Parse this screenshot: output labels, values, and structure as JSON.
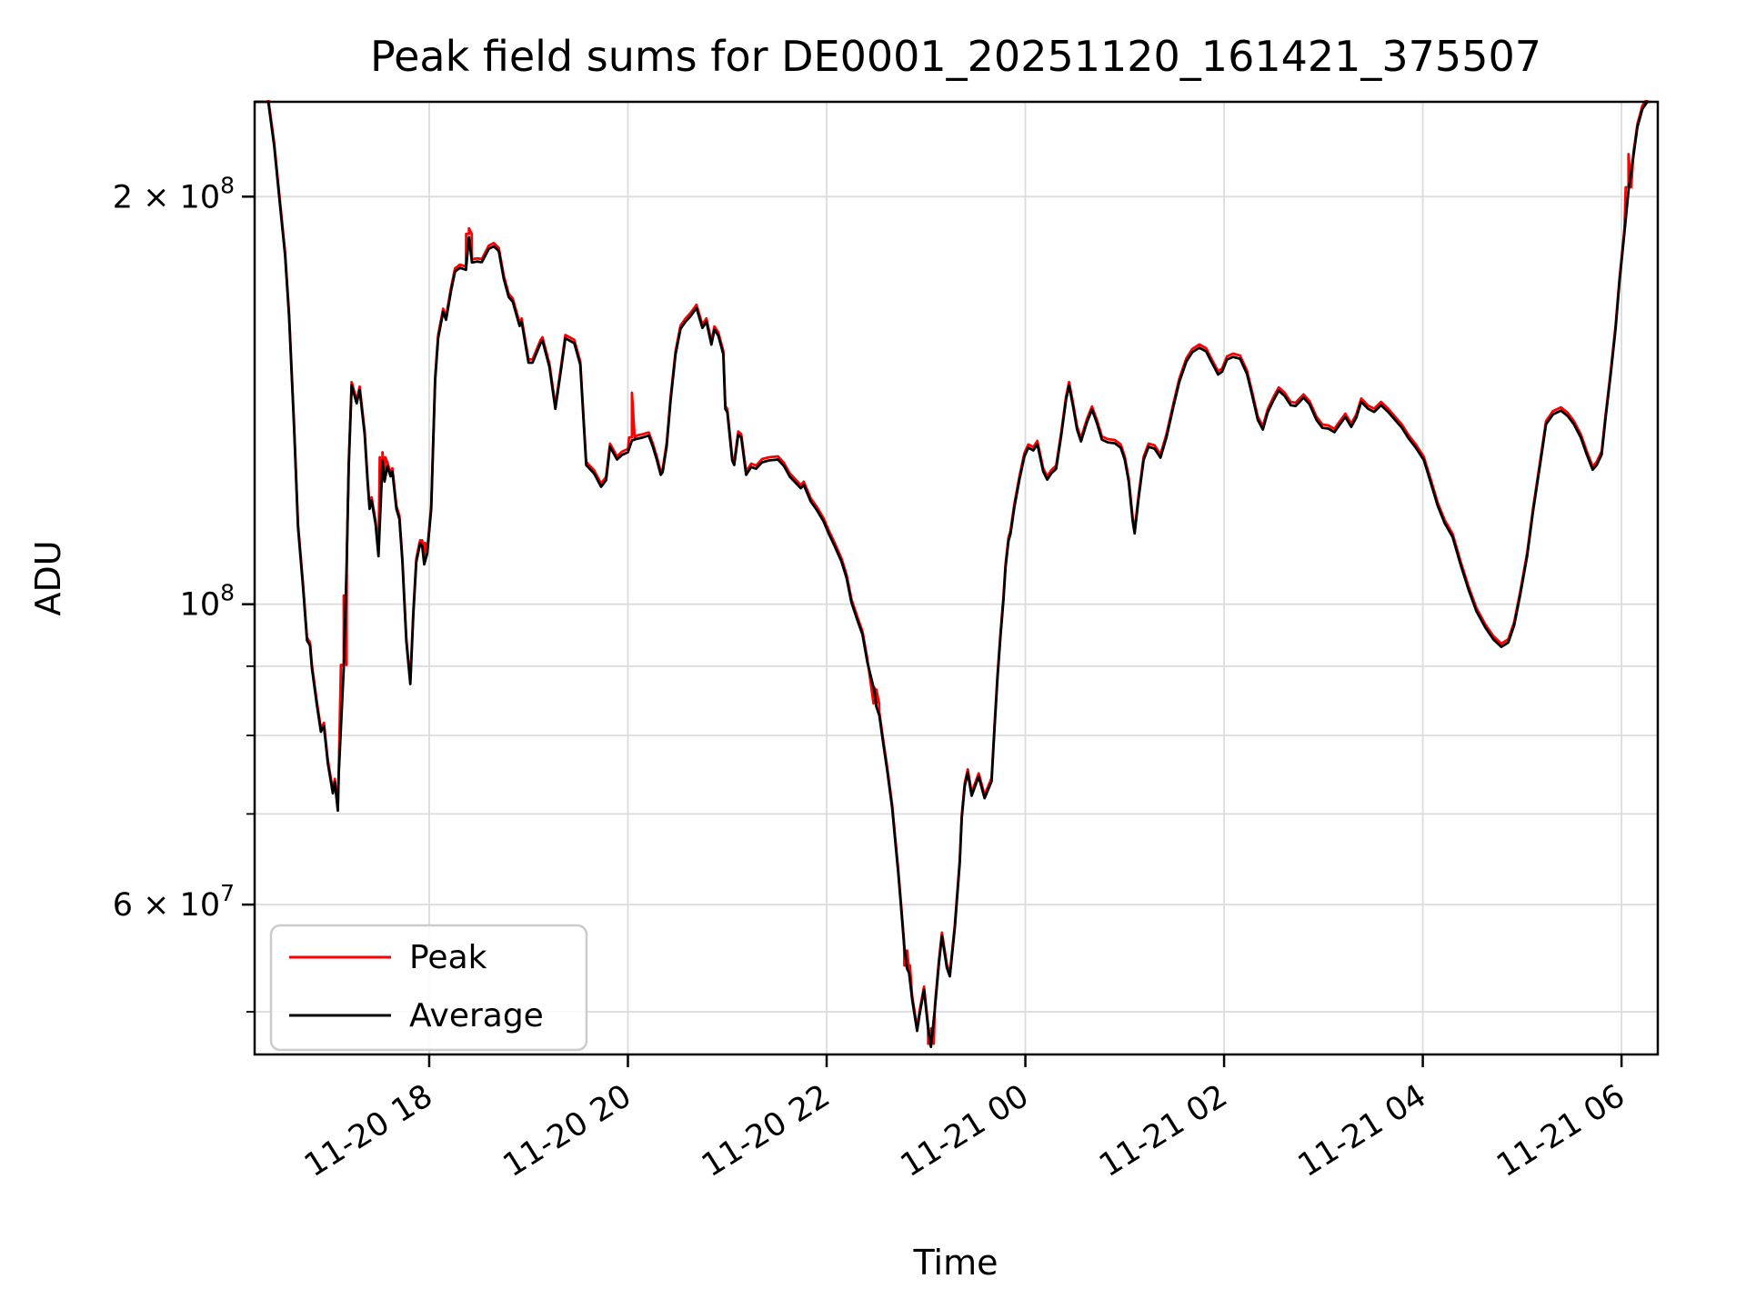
{
  "chart_data": {
    "type": "line",
    "title": "Peak field sums for DE0001_20251120_161421_375507",
    "xlabel": "Time",
    "ylabel": "ADU",
    "x_unit": "hours after 2025-11-20 16:00",
    "y_unit": "ADU (millions)",
    "xlim": [
      0.243,
      14.365
    ],
    "ylim_adu_millions": [
      46.5,
      235
    ],
    "y_scale": "log",
    "grid": true,
    "legend_position": "lower left",
    "x_ticks": [
      {
        "t": 2,
        "label": "11-20 18"
      },
      {
        "t": 4,
        "label": "11-20 20"
      },
      {
        "t": 6,
        "label": "11-20 22"
      },
      {
        "t": 8,
        "label": "11-21 00"
      },
      {
        "t": 10,
        "label": "11-21 02"
      },
      {
        "t": 12,
        "label": "11-21 04"
      },
      {
        "t": 14,
        "label": "11-21 06"
      }
    ],
    "y_ticks": [
      {
        "m": 200,
        "label": "2 × 10⁸",
        "base": "2 × 10",
        "sup": "8",
        "major": true
      },
      {
        "m": 100,
        "label": "10⁸",
        "base": "10",
        "sup": "8",
        "major": true
      },
      {
        "m": 90,
        "major": false
      },
      {
        "m": 80,
        "major": false
      },
      {
        "m": 70,
        "major": false
      },
      {
        "m": 60,
        "label": "6 × 10⁷",
        "base": "6 × 10",
        "sup": "7",
        "major": true
      },
      {
        "m": 50,
        "major": false
      }
    ],
    "series": [
      {
        "name": "Peak",
        "color": "#ff0000",
        "derived_from": "Average",
        "baseline_factor": 1.0055,
        "spikes": [
          [
            1.14,
            101.5
          ],
          [
            1.53,
            129.5
          ],
          [
            1.93,
            111.5
          ],
          [
            2.4,
            189.5
          ],
          [
            4.04,
            143.3
          ],
          [
            6.5,
            86.5
          ],
          [
            6.81,
            55.5
          ],
          [
            7.05,
            48.6
          ],
          [
            14.07,
            215
          ]
        ]
      },
      {
        "name": "Average",
        "color": "#000000",
        "points": [
          [
            0.24,
            235
          ],
          [
            0.38,
            235
          ],
          [
            0.44,
            218
          ],
          [
            0.49,
            200
          ],
          [
            0.55,
            181
          ],
          [
            0.59,
            163
          ],
          [
            0.64,
            135
          ],
          [
            0.68,
            114
          ],
          [
            0.73,
            103
          ],
          [
            0.77,
            94
          ],
          [
            0.8,
            93.2
          ],
          [
            0.82,
            89.7
          ],
          [
            0.87,
            84.2
          ],
          [
            0.91,
            80.5
          ],
          [
            0.94,
            81.3
          ],
          [
            0.98,
            76.3
          ],
          [
            1.03,
            72.5
          ],
          [
            1.05,
            73.9
          ],
          [
            1.08,
            70.4
          ],
          [
            1.09,
            74.9
          ],
          [
            1.14,
            89.7
          ],
          [
            1.17,
            107.5
          ],
          [
            1.19,
            126.5
          ],
          [
            1.22,
            145.1
          ],
          [
            1.27,
            140.7
          ],
          [
            1.3,
            144
          ],
          [
            1.35,
            133.5
          ],
          [
            1.38,
            123.2
          ],
          [
            1.4,
            117.6
          ],
          [
            1.42,
            119.3
          ],
          [
            1.46,
            114.6
          ],
          [
            1.49,
            108.5
          ],
          [
            1.51,
            117.6
          ],
          [
            1.53,
            127.7
          ],
          [
            1.55,
            123.2
          ],
          [
            1.58,
            126.5
          ],
          [
            1.61,
            124.3
          ],
          [
            1.63,
            125.3
          ],
          [
            1.67,
            117.6
          ],
          [
            1.7,
            115.6
          ],
          [
            1.73,
            107.5
          ],
          [
            1.77,
            93.9
          ],
          [
            1.81,
            87.3
          ],
          [
            1.84,
            98.2
          ],
          [
            1.87,
            107.5
          ],
          [
            1.91,
            110.9
          ],
          [
            1.93,
            110.4
          ],
          [
            1.95,
            107
          ],
          [
            1.98,
            109
          ],
          [
            2.02,
            117.6
          ],
          [
            2.06,
            146.3
          ],
          [
            2.09,
            157.2
          ],
          [
            2.14,
            164.4
          ],
          [
            2.17,
            162.2
          ],
          [
            2.22,
            170.4
          ],
          [
            2.26,
            176.1
          ],
          [
            2.31,
            177.2
          ],
          [
            2.37,
            176.6
          ],
          [
            2.4,
            186.7
          ],
          [
            2.43,
            178.8
          ],
          [
            2.48,
            179.1
          ],
          [
            2.53,
            178.9
          ],
          [
            2.6,
            183
          ],
          [
            2.65,
            183.8
          ],
          [
            2.7,
            182.3
          ],
          [
            2.75,
            174
          ],
          [
            2.8,
            168.6
          ],
          [
            2.84,
            167.3
          ],
          [
            2.91,
            160.5
          ],
          [
            2.93,
            161.7
          ],
          [
            3.0,
            150.8
          ],
          [
            3.04,
            150.8
          ],
          [
            3.12,
            155.8
          ],
          [
            3.14,
            156.6
          ],
          [
            3.21,
            149.7
          ],
          [
            3.27,
            139.4
          ],
          [
            3.33,
            149.6
          ],
          [
            3.37,
            157.2
          ],
          [
            3.46,
            155.9
          ],
          [
            3.52,
            150.3
          ],
          [
            3.58,
            126.7
          ],
          [
            3.66,
            124.9
          ],
          [
            3.73,
            122.1
          ],
          [
            3.78,
            123.5
          ],
          [
            3.82,
            130.7
          ],
          [
            3.89,
            127.9
          ],
          [
            3.94,
            128.9
          ],
          [
            4.0,
            129.5
          ],
          [
            4.04,
            132.1
          ],
          [
            4.09,
            132.5
          ],
          [
            4.15,
            132.8
          ],
          [
            4.21,
            133.2
          ],
          [
            4.25,
            130.8
          ],
          [
            4.29,
            127.9
          ],
          [
            4.33,
            124.6
          ],
          [
            4.35,
            125.2
          ],
          [
            4.39,
            130.8
          ],
          [
            4.43,
            141.6
          ],
          [
            4.48,
            153
          ],
          [
            4.53,
            159.8
          ],
          [
            4.58,
            161.7
          ],
          [
            4.63,
            163.2
          ],
          [
            4.69,
            165.5
          ],
          [
            4.75,
            160
          ],
          [
            4.79,
            161.7
          ],
          [
            4.84,
            155.5
          ],
          [
            4.87,
            159.5
          ],
          [
            4.91,
            157.9
          ],
          [
            4.96,
            153
          ],
          [
            4.98,
            139.4
          ],
          [
            5.0,
            138.6
          ],
          [
            5.05,
            127.7
          ],
          [
            5.07,
            126.7
          ],
          [
            5.11,
            133.4
          ],
          [
            5.14,
            132.8
          ],
          [
            5.19,
            124.6
          ],
          [
            5.24,
            126.3
          ],
          [
            5.29,
            125.9
          ],
          [
            5.35,
            127.3
          ],
          [
            5.42,
            127.7
          ],
          [
            5.51,
            127.9
          ],
          [
            5.57,
            126.5
          ],
          [
            5.63,
            124.2
          ],
          [
            5.7,
            122.7
          ],
          [
            5.74,
            121.8
          ],
          [
            5.77,
            122.5
          ],
          [
            5.84,
            119.1
          ],
          [
            5.9,
            117.4
          ],
          [
            5.97,
            115.1
          ],
          [
            6.02,
            112.8
          ],
          [
            6.08,
            110.4
          ],
          [
            6.15,
            107.5
          ],
          [
            6.2,
            104.6
          ],
          [
            6.25,
            100.3
          ],
          [
            6.31,
            97.3
          ],
          [
            6.36,
            95
          ],
          [
            6.41,
            90.6
          ],
          [
            6.48,
            86.3
          ],
          [
            6.5,
            84
          ],
          [
            6.53,
            82.8
          ],
          [
            6.57,
            78.9
          ],
          [
            6.61,
            75.3
          ],
          [
            6.66,
            70.7
          ],
          [
            6.69,
            66.9
          ],
          [
            6.72,
            63.4
          ],
          [
            6.75,
            59.6
          ],
          [
            6.78,
            56
          ],
          [
            6.81,
            53.8
          ],
          [
            6.83,
            53.4
          ],
          [
            6.86,
            51.1
          ],
          [
            6.91,
            48.4
          ],
          [
            6.94,
            50
          ],
          [
            6.98,
            51.9
          ],
          [
            7.02,
            48.7
          ],
          [
            7.05,
            47.1
          ],
          [
            7.09,
            50.3
          ],
          [
            7.13,
            54.3
          ],
          [
            7.16,
            56.9
          ],
          [
            7.21,
            53.9
          ],
          [
            7.24,
            53.1
          ],
          [
            7.29,
            57.7
          ],
          [
            7.34,
            64.4
          ],
          [
            7.36,
            69.5
          ],
          [
            7.39,
            73.4
          ],
          [
            7.42,
            75.1
          ],
          [
            7.46,
            72.2
          ],
          [
            7.53,
            74.6
          ],
          [
            7.59,
            71.9
          ],
          [
            7.66,
            74
          ],
          [
            7.69,
            81.1
          ],
          [
            7.72,
            88.4
          ],
          [
            7.75,
            94.7
          ],
          [
            7.78,
            100.8
          ],
          [
            7.8,
            106.4
          ],
          [
            7.83,
            111.4
          ],
          [
            7.85,
            112.7
          ],
          [
            7.89,
            118
          ],
          [
            7.94,
            123.6
          ],
          [
            7.99,
            128.6
          ],
          [
            8.03,
            130.5
          ],
          [
            8.08,
            129.9
          ],
          [
            8.12,
            131.3
          ],
          [
            8.18,
            125.3
          ],
          [
            8.22,
            123.6
          ],
          [
            8.26,
            124.9
          ],
          [
            8.31,
            125.9
          ],
          [
            8.36,
            133.1
          ],
          [
            8.41,
            141.6
          ],
          [
            8.44,
            145.1
          ],
          [
            8.48,
            140
          ],
          [
            8.52,
            134.6
          ],
          [
            8.56,
            131.9
          ],
          [
            8.62,
            136.3
          ],
          [
            8.67,
            139.2
          ],
          [
            8.72,
            136.1
          ],
          [
            8.77,
            132.3
          ],
          [
            8.83,
            131.7
          ],
          [
            8.9,
            131.5
          ],
          [
            8.96,
            130.5
          ],
          [
            9.0,
            127.9
          ],
          [
            9.04,
            123.2
          ],
          [
            9.08,
            115.3
          ],
          [
            9.1,
            112.8
          ],
          [
            9.14,
            119.8
          ],
          [
            9.19,
            127.8
          ],
          [
            9.24,
            130.7
          ],
          [
            9.3,
            130.3
          ],
          [
            9.36,
            128.3
          ],
          [
            9.42,
            132.8
          ],
          [
            9.49,
            139.9
          ],
          [
            9.55,
            146
          ],
          [
            9.62,
            151.1
          ],
          [
            9.68,
            153.5
          ],
          [
            9.75,
            154.7
          ],
          [
            9.82,
            153.7
          ],
          [
            9.86,
            151.6
          ],
          [
            9.94,
            147.8
          ],
          [
            9.98,
            148.5
          ],
          [
            10.03,
            151.6
          ],
          [
            10.09,
            152.3
          ],
          [
            10.16,
            151.8
          ],
          [
            10.23,
            148
          ],
          [
            10.28,
            142.9
          ],
          [
            10.34,
            136.8
          ],
          [
            10.39,
            134.6
          ],
          [
            10.44,
            138.6
          ],
          [
            10.5,
            141.6
          ],
          [
            10.55,
            143.8
          ],
          [
            10.61,
            142.5
          ],
          [
            10.67,
            140.3
          ],
          [
            10.72,
            140.1
          ],
          [
            10.8,
            142.1
          ],
          [
            10.86,
            140.5
          ],
          [
            10.93,
            136.8
          ],
          [
            10.99,
            135
          ],
          [
            11.05,
            134.8
          ],
          [
            11.11,
            134
          ],
          [
            11.16,
            135.6
          ],
          [
            11.22,
            137.5
          ],
          [
            11.28,
            135.2
          ],
          [
            11.33,
            137.3
          ],
          [
            11.38,
            141.1
          ],
          [
            11.45,
            139.4
          ],
          [
            11.51,
            138.7
          ],
          [
            11.58,
            140.3
          ],
          [
            11.65,
            138.7
          ],
          [
            11.71,
            137.1
          ],
          [
            11.79,
            135
          ],
          [
            11.86,
            132.5
          ],
          [
            11.93,
            130.5
          ],
          [
            12.01,
            127.8
          ],
          [
            12.08,
            123
          ],
          [
            12.15,
            118.2
          ],
          [
            12.22,
            114.8
          ],
          [
            12.3,
            112.1
          ],
          [
            12.38,
            107
          ],
          [
            12.46,
            102.5
          ],
          [
            12.54,
            98.8
          ],
          [
            12.63,
            96.1
          ],
          [
            12.71,
            94.2
          ],
          [
            12.79,
            93
          ],
          [
            12.86,
            93.7
          ],
          [
            12.92,
            96.5
          ],
          [
            12.98,
            101.6
          ],
          [
            13.05,
            108.5
          ],
          [
            13.11,
            117.2
          ],
          [
            13.18,
            126.7
          ],
          [
            13.24,
            135.8
          ],
          [
            13.31,
            138.1
          ],
          [
            13.39,
            139
          ],
          [
            13.46,
            137.7
          ],
          [
            13.52,
            135.8
          ],
          [
            13.59,
            132.8
          ],
          [
            13.65,
            129
          ],
          [
            13.71,
            125.7
          ],
          [
            13.75,
            126.7
          ],
          [
            13.8,
            129
          ],
          [
            13.84,
            137.3
          ],
          [
            13.89,
            147.6
          ],
          [
            13.94,
            159.8
          ],
          [
            13.98,
            173.1
          ],
          [
            14.03,
            188.4
          ],
          [
            14.07,
            202.1
          ],
          [
            14.12,
            214.3
          ],
          [
            14.16,
            225.1
          ],
          [
            14.21,
            232.2
          ],
          [
            14.26,
            235
          ],
          [
            14.29,
            235
          ]
        ]
      }
    ],
    "colors": {
      "grid": "#dcdcdc",
      "spine": "#000000",
      "legend_border": "#cbcbcb"
    }
  }
}
